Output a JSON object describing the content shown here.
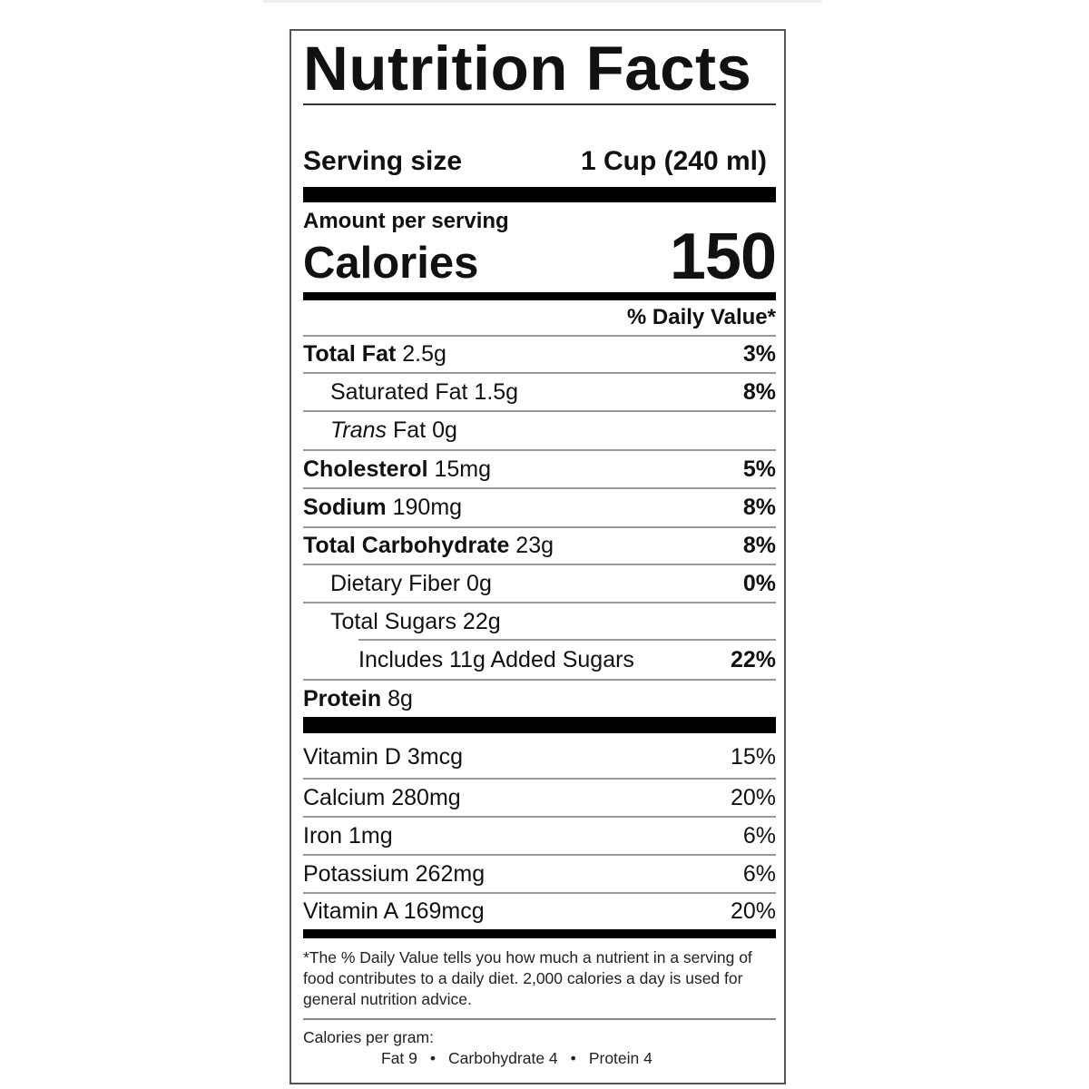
{
  "title": "Nutrition Facts",
  "serving": {
    "label": "Serving size",
    "value": "1 Cup (240 ml)"
  },
  "amount_per_serving": "Amount per serving",
  "calories": {
    "label": "Calories",
    "value": "150"
  },
  "daily_value_header": "% Daily Value*",
  "nutrients": [
    {
      "name": "Total Fat",
      "amount": "2.5g",
      "dv": "3%"
    },
    {
      "name": "Saturated Fat 1.5g",
      "dv": "8%"
    },
    {
      "name_italic": "Trans",
      "name": "Fat 0g"
    },
    {
      "name": "Cholesterol",
      "amount": "15mg",
      "dv": "5%"
    },
    {
      "name": "Sodium",
      "amount": "190mg",
      "dv": "8%"
    },
    {
      "name": "Total Carbohydrate",
      "amount": "23g",
      "dv": "8%"
    },
    {
      "name": "Dietary Fiber 0g",
      "dv": "0%"
    },
    {
      "name": "Total Sugars 22g"
    },
    {
      "name": "Includes 11g Added Sugars",
      "dv": "22%"
    },
    {
      "name": "Protein",
      "amount": "8g"
    }
  ],
  "vitamins": [
    {
      "name": "Vitamin D 3mcg",
      "dv": "15%"
    },
    {
      "name": "Calcium 280mg",
      "dv": "20%"
    },
    {
      "name": "Iron 1mg",
      "dv": "6%"
    },
    {
      "name": "Potassium 262mg",
      "dv": "6%"
    },
    {
      "name": "Vitamin A 169mcg",
      "dv": "20%"
    }
  ],
  "footnote": "*The % Daily Value tells you how much a nutrient in a serving of food contributes to a daily diet. 2,000 calories a day is used for general nutrition advice.",
  "calories_per_gram": {
    "label": "Calories per gram:",
    "fat": "Fat 9",
    "carbohydrate": "Carbohydrate 4",
    "protein": "Protein 4",
    "separator": "•"
  }
}
